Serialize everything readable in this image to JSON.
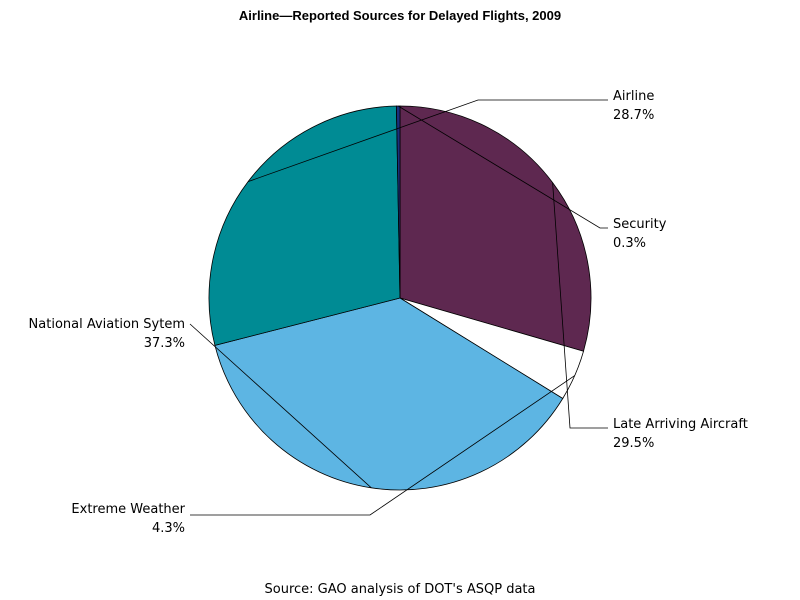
{
  "chart_data": {
    "type": "pie",
    "title": "Airline—Reported Sources for Delayed Flights, 2009",
    "source": "Source: GAO analysis of DOT's ASQP data",
    "slices": [
      {
        "label": "Late Arriving Aircraft",
        "value": 29.5,
        "value_label": "29.5%",
        "color": "#5e2850"
      },
      {
        "label": "Extreme Weather",
        "value": 4.3,
        "value_label": "4.3%",
        "color": "#ffffff"
      },
      {
        "label": "National Aviation Sytem",
        "value": 37.3,
        "value_label": "37.3%",
        "color": "#5db5e3"
      },
      {
        "label": "Airline",
        "value": 28.7,
        "value_label": "28.7%",
        "color": "#008b94"
      },
      {
        "label": "Security",
        "value": 0.3,
        "value_label": "0.3%",
        "color": "#1c2f7d"
      }
    ]
  }
}
